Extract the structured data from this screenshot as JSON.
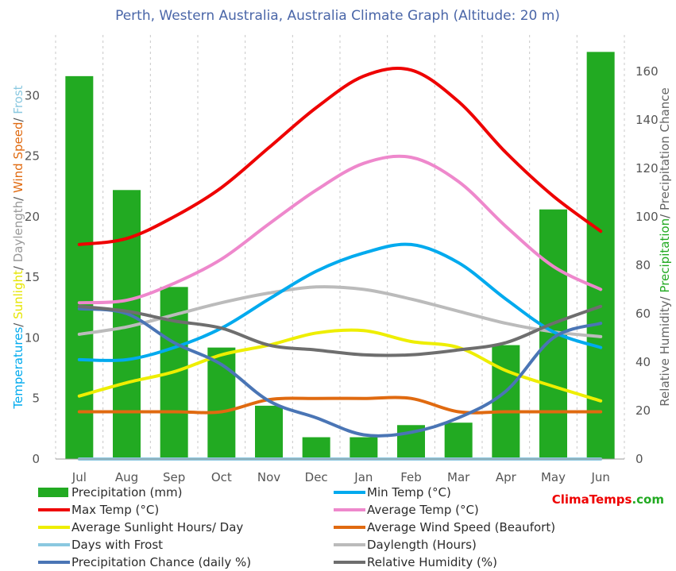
{
  "chart_data": {
    "type": "line",
    "title": "Perth, Western Australia, Australia Climate Graph (Altitude: 20 m)",
    "categories": [
      "Jul",
      "Aug",
      "Sep",
      "Oct",
      "Nov",
      "Dec",
      "Jan",
      "Feb",
      "Mar",
      "Apr",
      "May",
      "Jun"
    ],
    "left_axis": {
      "label_parts": [
        {
          "text": "Temperatures",
          "color": "#00aaee"
        },
        {
          "text": "/ ",
          "color": "#555555"
        },
        {
          "text": "Sunlight",
          "color": "#e5e500"
        },
        {
          "text": "/ ",
          "color": "#555555"
        },
        {
          "text": "Daylength",
          "color": "#999999"
        },
        {
          "text": "/ ",
          "color": "#555555"
        },
        {
          "text": "Wind Speed",
          "color": "#e06a10"
        },
        {
          "text": "/ ",
          "color": "#555555"
        },
        {
          "text": "Frost",
          "color": "#8ac8e0"
        }
      ],
      "ylim": [
        0,
        35
      ],
      "ticks": [
        "0",
        "5",
        "10",
        "15",
        "20",
        "25",
        "30"
      ]
    },
    "right_axis": {
      "label_parts": [
        {
          "text": "Relative Humidity",
          "color": "#666666"
        },
        {
          "text": "/ ",
          "color": "#555555"
        },
        {
          "text": "Precipitation",
          "color": "#22aa22"
        },
        {
          "text": "/ ",
          "color": "#555555"
        },
        {
          "text": "Precipitation Chance",
          "color": "#666666"
        }
      ],
      "ylim": [
        0,
        175
      ],
      "ticks": [
        "0",
        "20",
        "40",
        "60",
        "80",
        "100",
        "120",
        "140",
        "160"
      ]
    },
    "bars": {
      "name": "Precipitation (mm)",
      "color": "#22aa22",
      "axis": "right",
      "values": [
        158,
        111,
        71,
        46,
        22,
        9,
        9,
        14,
        15,
        47,
        103,
        168
      ]
    },
    "series": [
      {
        "name": "Min Temp (°C)",
        "color": "#00aaee",
        "axis": "left",
        "values": [
          8.2,
          8.2,
          9.2,
          10.8,
          13.2,
          15.5,
          17.0,
          17.7,
          16.2,
          13.2,
          10.5,
          9.2
        ]
      },
      {
        "name": "Max Temp (°C)",
        "color": "#ee0000",
        "axis": "left",
        "values": [
          17.7,
          18.2,
          20.0,
          22.4,
          25.7,
          29.0,
          31.6,
          32.1,
          29.5,
          25.3,
          21.7,
          18.8
        ]
      },
      {
        "name": "Average Temp (°C)",
        "color": "#ee88cc",
        "axis": "left",
        "values": [
          12.9,
          13.1,
          14.5,
          16.5,
          19.4,
          22.2,
          24.4,
          24.9,
          22.9,
          19.2,
          15.9,
          14.0
        ]
      },
      {
        "name": "Average Sunlight Hours/ Day",
        "color": "#eeee00",
        "axis": "left",
        "values": [
          5.2,
          6.3,
          7.2,
          8.6,
          9.4,
          10.4,
          10.6,
          9.7,
          9.2,
          7.3,
          6.0,
          4.8
        ]
      },
      {
        "name": "Average Wind Speed (Beaufort)",
        "color": "#e06a10",
        "axis": "left",
        "values": [
          3.9,
          3.9,
          3.9,
          3.9,
          4.9,
          5.0,
          5.0,
          5.0,
          3.9,
          3.9,
          3.9,
          3.9
        ]
      },
      {
        "name": "Days with Frost",
        "color": "#8ac8e0",
        "axis": "left",
        "values": [
          0,
          0,
          0,
          0,
          0,
          0,
          0,
          0,
          0,
          0,
          0,
          0
        ]
      },
      {
        "name": "Daylength (Hours)",
        "color": "#bbbbbb",
        "axis": "left",
        "values": [
          10.3,
          10.9,
          11.9,
          12.9,
          13.7,
          14.2,
          14.0,
          13.2,
          12.2,
          11.2,
          10.5,
          10.1
        ]
      },
      {
        "name": "Precipitation Chance (daily %)",
        "color": "#4a75b5",
        "axis": "right",
        "values": [
          62,
          60,
          48,
          39,
          24,
          17,
          10,
          11,
          17,
          28,
          50,
          56
        ]
      },
      {
        "name": "Relative Humidity (%)",
        "color": "#6e6e6e",
        "axis": "right",
        "values": [
          63,
          61,
          57,
          54,
          47,
          45,
          43,
          43,
          45,
          48,
          56,
          63
        ]
      }
    ],
    "legend_order": [
      "Precipitation (mm)",
      "Min Temp (°C)",
      "Max Temp (°C)",
      "Average Temp (°C)",
      "Average Sunlight Hours/ Day",
      "Average Wind Speed (Beaufort)",
      "Days with Frost",
      "Daylength (Hours)",
      "Precipitation Chance (daily %)",
      "Relative Humidity (%)"
    ],
    "legend_placement": "bottom",
    "grid": "vertical"
  },
  "brand": {
    "parts": [
      {
        "text": "Clima",
        "color": "#ee0000"
      },
      {
        "text": "Temps",
        "color": "#ee0000"
      },
      {
        "text": ".com",
        "color": "#22aa22"
      }
    ]
  }
}
